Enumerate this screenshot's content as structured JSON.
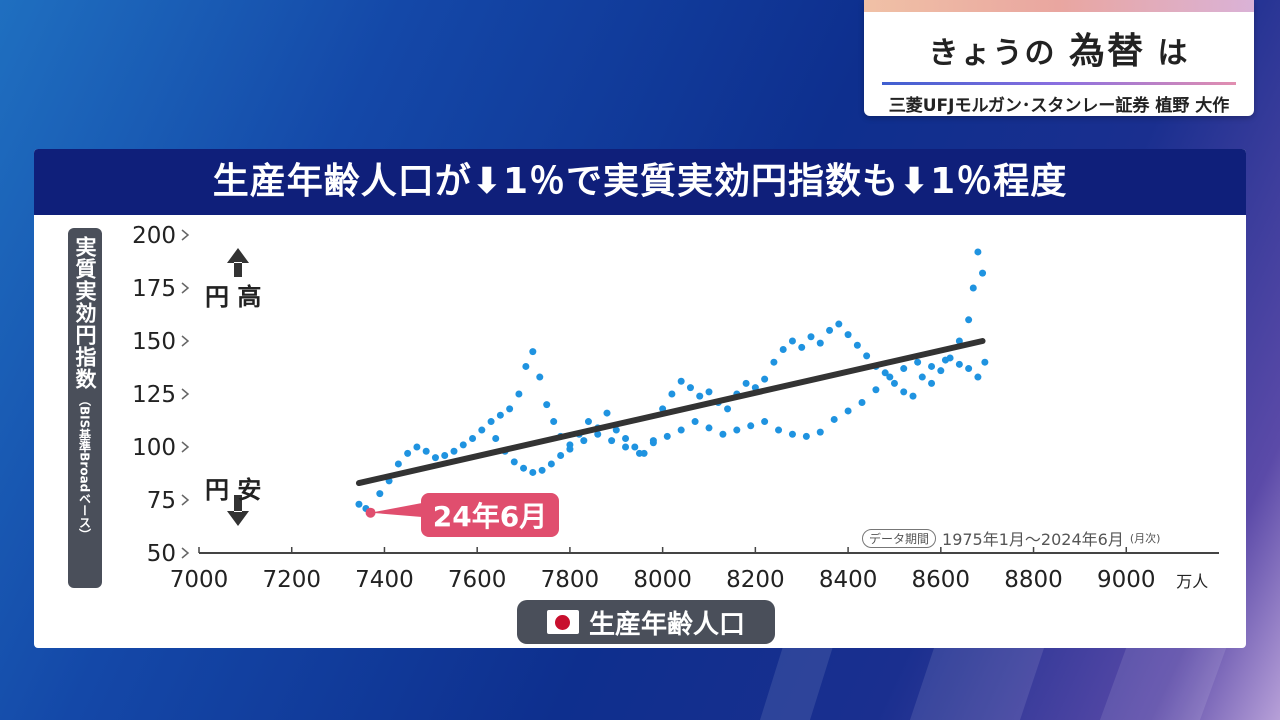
{
  "ticker": {
    "title_pre": "きょうの",
    "title_big": "為替",
    "title_post": "は",
    "guest": "三菱UFJモルガン･スタンレー証券 植野 大作"
  },
  "panel": {
    "header": "生産年齢人口が⬇1％で実質実効円指数も⬇1％程度"
  },
  "colors": {
    "header_bg": "#0f1f7a",
    "scatter": "#1f93e0",
    "trend": "#333333",
    "callout": "#e04e6e"
  },
  "labels": {
    "yen_high": "円 高",
    "yen_low": "円 安",
    "period_tag": "データ期間",
    "period_text": "1975年1月～2024年6月",
    "period_note": "(月次)",
    "callout": "24年6月",
    "ylabel_main": "実質実効円指数",
    "ylabel_note": "（BIS基準Broadベース）",
    "xtitle": "生産年齢人口"
  },
  "chart_data": {
    "type": "scatter",
    "title": "生産年齢人口が⬇1％で実質実効円指数も⬇1％程度",
    "xlabel": "生産年齢人口",
    "ylabel": "実質実効円指数（BIS基準Broadベース）",
    "x_unit": "万人",
    "xlim": [
      7000,
      9200
    ],
    "ylim": [
      50,
      200
    ],
    "x_ticks": [
      "7000",
      "7200",
      "7400",
      "7600",
      "7800",
      "8000",
      "8200",
      "8400",
      "8600",
      "8800",
      "9000"
    ],
    "y_ticks": [
      "50",
      "75",
      "100",
      "125",
      "150",
      "175",
      "200"
    ],
    "series": [
      {
        "points": [
          [
            7345,
            73
          ],
          [
            7360,
            71
          ],
          [
            7372,
            69
          ],
          [
            7390,
            78
          ],
          [
            7410,
            84
          ],
          [
            7430,
            92
          ],
          [
            7450,
            97
          ],
          [
            7470,
            100
          ],
          [
            7490,
            98
          ],
          [
            7510,
            95
          ],
          [
            7530,
            96
          ],
          [
            7550,
            98
          ],
          [
            7570,
            101
          ],
          [
            7590,
            104
          ],
          [
            7610,
            108
          ],
          [
            7630,
            112
          ],
          [
            7650,
            115
          ],
          [
            7670,
            118
          ],
          [
            7690,
            125
          ],
          [
            7705,
            138
          ],
          [
            7720,
            145
          ],
          [
            7735,
            133
          ],
          [
            7750,
            120
          ],
          [
            7765,
            112
          ],
          [
            7780,
            105
          ],
          [
            7800,
            101
          ],
          [
            7820,
            106
          ],
          [
            7840,
            112
          ],
          [
            7860,
            109
          ],
          [
            7880,
            116
          ],
          [
            7900,
            108
          ],
          [
            7920,
            104
          ],
          [
            7940,
            100
          ],
          [
            7960,
            97
          ],
          [
            7980,
            103
          ],
          [
            8000,
            118
          ],
          [
            8020,
            125
          ],
          [
            8040,
            131
          ],
          [
            8060,
            128
          ],
          [
            8080,
            124
          ],
          [
            8100,
            126
          ],
          [
            8120,
            121
          ],
          [
            8140,
            118
          ],
          [
            8160,
            125
          ],
          [
            8180,
            130
          ],
          [
            8200,
            128
          ],
          [
            8220,
            132
          ],
          [
            8240,
            140
          ],
          [
            8260,
            146
          ],
          [
            8280,
            150
          ],
          [
            8300,
            147
          ],
          [
            8320,
            152
          ],
          [
            8340,
            149
          ],
          [
            8360,
            155
          ],
          [
            8380,
            158
          ],
          [
            8400,
            153
          ],
          [
            8420,
            148
          ],
          [
            8440,
            143
          ],
          [
            8460,
            138
          ],
          [
            8480,
            135
          ],
          [
            8500,
            130
          ],
          [
            8520,
            126
          ],
          [
            8540,
            124
          ],
          [
            8560,
            133
          ],
          [
            8580,
            130
          ],
          [
            8600,
            136
          ],
          [
            8620,
            142
          ],
          [
            8640,
            150
          ],
          [
            8660,
            160
          ],
          [
            8670,
            175
          ],
          [
            8680,
            192
          ],
          [
            8690,
            182
          ],
          [
            7640,
            104
          ],
          [
            7660,
            98
          ],
          [
            7680,
            93
          ],
          [
            7700,
            90
          ],
          [
            7720,
            88
          ],
          [
            7740,
            89
          ],
          [
            7760,
            92
          ],
          [
            7780,
            96
          ],
          [
            7800,
            99
          ],
          [
            7830,
            103
          ],
          [
            7860,
            106
          ],
          [
            7890,
            103
          ],
          [
            7920,
            100
          ],
          [
            7950,
            97
          ],
          [
            7980,
            102
          ],
          [
            8010,
            105
          ],
          [
            8040,
            108
          ],
          [
            8070,
            112
          ],
          [
            8100,
            109
          ],
          [
            8130,
            106
          ],
          [
            8160,
            108
          ],
          [
            8190,
            110
          ],
          [
            8220,
            112
          ],
          [
            8250,
            108
          ],
          [
            8280,
            106
          ],
          [
            8310,
            105
          ],
          [
            8340,
            107
          ],
          [
            8370,
            113
          ],
          [
            8400,
            117
          ],
          [
            8430,
            121
          ],
          [
            8460,
            127
          ],
          [
            8490,
            133
          ],
          [
            8520,
            137
          ],
          [
            8550,
            140
          ],
          [
            8580,
            138
          ],
          [
            8610,
            141
          ],
          [
            8640,
            139
          ],
          [
            8660,
            137
          ],
          [
            8680,
            133
          ],
          [
            8695,
            140
          ]
        ]
      }
    ],
    "trend": [
      [
        7345,
        83
      ],
      [
        8690,
        150
      ]
    ],
    "annotations": [
      {
        "text": "24年6月",
        "x": 7370,
        "y": 69
      },
      {
        "text": "円 高"
      },
      {
        "text": "円 安"
      }
    ]
  }
}
